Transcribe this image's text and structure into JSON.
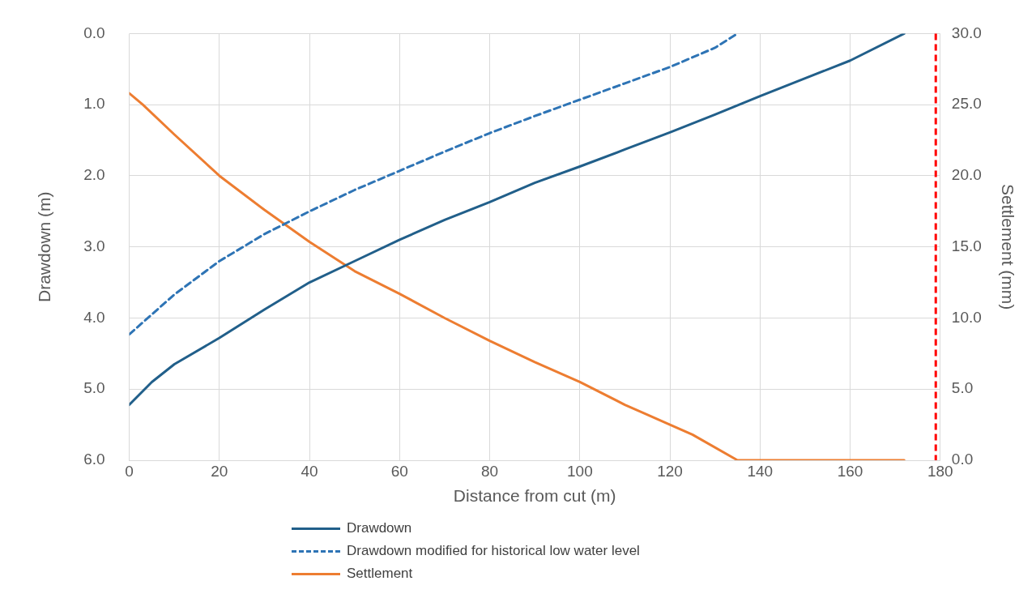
{
  "chart_data": {
    "type": "line",
    "xlabel": "Distance from cut (m)",
    "ylabel": "Drawdown (m)",
    "y2label": "Settlement (mm)",
    "xlim": [
      0,
      180
    ],
    "xticks": [
      0,
      20,
      40,
      60,
      80,
      100,
      120,
      140,
      160,
      180
    ],
    "ylim": [
      6,
      0
    ],
    "yticks": [
      {
        "value": 0,
        "label": "0.0"
      },
      {
        "value": 1,
        "label": "1.0"
      },
      {
        "value": 2,
        "label": "2.0"
      },
      {
        "value": 3,
        "label": "3.0"
      },
      {
        "value": 4,
        "label": "4.0"
      },
      {
        "value": 5,
        "label": "5.0"
      },
      {
        "value": 6,
        "label": "6.0"
      }
    ],
    "y2lim": [
      0,
      30
    ],
    "y2ticks": [
      {
        "value": 0,
        "label": "0.0"
      },
      {
        "value": 5,
        "label": "5.0"
      },
      {
        "value": 10,
        "label": "10.0"
      },
      {
        "value": 15,
        "label": "15.0"
      },
      {
        "value": 20,
        "label": "20.0"
      },
      {
        "value": 25,
        "label": "25.0"
      },
      {
        "value": 30,
        "label": "30.0"
      }
    ],
    "grid": true,
    "legend": "bottom",
    "marker": "none",
    "series": [
      {
        "name": "Drawdown",
        "color": "#215f8a",
        "line_style": "solid",
        "x": [
          0,
          5,
          10,
          20,
          30,
          40,
          50,
          60,
          70,
          80,
          90,
          100,
          110,
          120,
          130,
          140,
          150,
          160,
          172
        ],
        "values": [
          5.22,
          4.9,
          4.65,
          4.28,
          3.88,
          3.5,
          3.2,
          2.9,
          2.62,
          2.37,
          2.1,
          1.87,
          1.63,
          1.39,
          1.14,
          0.88,
          0.63,
          0.38,
          0
        ]
      },
      {
        "name": "Drawdown modified for historical low water level",
        "color": "#2e74b5",
        "line_style": "dashed",
        "x": [
          0,
          5,
          10,
          20,
          30,
          40,
          50,
          60,
          70,
          80,
          90,
          100,
          110,
          120,
          130,
          135
        ],
        "values": [
          4.23,
          3.95,
          3.67,
          3.2,
          2.82,
          2.5,
          2.2,
          1.93,
          1.66,
          1.4,
          1.16,
          0.93,
          0.7,
          0.47,
          0.2,
          0
        ]
      },
      {
        "name": "Settlement",
        "color": "#ed7d31",
        "line_style": "solid",
        "axis": "y2",
        "x": [
          0,
          3,
          10,
          20,
          30,
          40,
          50,
          60,
          70,
          80,
          90,
          100,
          110,
          120,
          125,
          135,
          172
        ],
        "values": [
          25.8,
          25,
          22.9,
          20,
          17.6,
          15.35,
          13.3,
          11.7,
          10,
          8.4,
          6.9,
          5.5,
          3.9,
          2.5,
          1.8,
          0,
          0
        ]
      }
    ],
    "ref_lines": [
      {
        "axis": "x",
        "value": 179,
        "color": "#ff0000",
        "line_style": "dashed"
      }
    ]
  }
}
